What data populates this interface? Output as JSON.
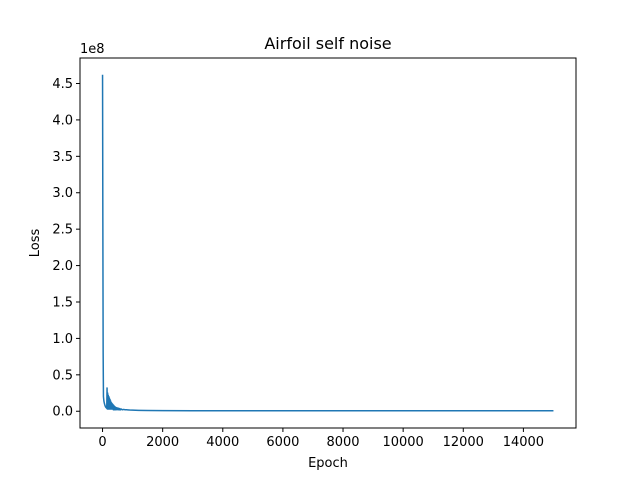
{
  "chart_data": {
    "type": "line",
    "title": "Airfoil self noise",
    "xlabel": "Epoch",
    "ylabel": "Loss",
    "y_scale_label": "1e8",
    "xlim": [
      -750,
      15750
    ],
    "ylim": [
      -0.23,
      4.85
    ],
    "y_unit_multiplier": 100000000,
    "xticks": [
      0,
      2000,
      4000,
      6000,
      8000,
      10000,
      12000,
      14000
    ],
    "xtick_labels": [
      "0",
      "2000",
      "4000",
      "6000",
      "8000",
      "10000",
      "12000",
      "14000"
    ],
    "yticks": [
      0.0,
      0.5,
      1.0,
      1.5,
      2.0,
      2.5,
      3.0,
      3.5,
      4.0,
      4.5
    ],
    "ytick_labels": [
      "0.0",
      "0.5",
      "1.0",
      "1.5",
      "2.0",
      "2.5",
      "3.0",
      "3.5",
      "4.0",
      "4.5"
    ],
    "grid": false,
    "legend": "none",
    "series": [
      {
        "color": "#1f77b4",
        "x": [
          0,
          10,
          20,
          30,
          45,
          60,
          80,
          100,
          120,
          140,
          150,
          160,
          170,
          180,
          190,
          200,
          210,
          220,
          230,
          240,
          250,
          260,
          270,
          280,
          290,
          300,
          310,
          320,
          330,
          340,
          350,
          360,
          370,
          380,
          390,
          400,
          420,
          440,
          460,
          480,
          500,
          520,
          540,
          560,
          580,
          600,
          630,
          660,
          700,
          750,
          800,
          900,
          1000,
          1200,
          1500,
          2000,
          3000,
          5000,
          8000,
          11000,
          15000
        ],
        "y": [
          4.62,
          2.6,
          0.8,
          0.2,
          0.14,
          0.11,
          0.08,
          0.06,
          0.05,
          0.04,
          0.32,
          0.03,
          0.25,
          0.03,
          0.22,
          0.03,
          0.2,
          0.03,
          0.18,
          0.03,
          0.16,
          0.03,
          0.14,
          0.03,
          0.12,
          0.03,
          0.11,
          0.03,
          0.1,
          0.03,
          0.09,
          0.02,
          0.08,
          0.02,
          0.07,
          0.02,
          0.06,
          0.02,
          0.05,
          0.02,
          0.045,
          0.02,
          0.04,
          0.02,
          0.035,
          0.02,
          0.03,
          0.02,
          0.025,
          0.02,
          0.02,
          0.017,
          0.015,
          0.012,
          0.01,
          0.008,
          0.007,
          0.006,
          0.006,
          0.006,
          0.006
        ]
      }
    ]
  }
}
